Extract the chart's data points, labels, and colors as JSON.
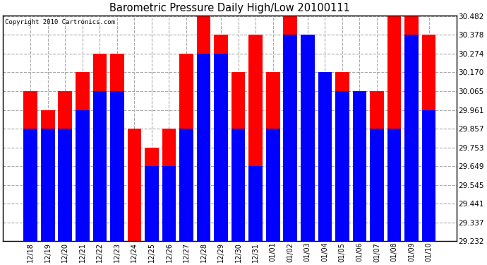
{
  "title": "Barometric Pressure Daily High/Low 20100111",
  "copyright": "Copyright 2010 Cartronics.com",
  "categories": [
    "12/18",
    "12/19",
    "12/20",
    "12/21",
    "12/22",
    "12/23",
    "12/24",
    "12/25",
    "12/26",
    "12/27",
    "12/28",
    "12/29",
    "12/30",
    "12/31",
    "01/01",
    "01/02",
    "01/03",
    "01/04",
    "01/05",
    "01/06",
    "01/07",
    "01/08",
    "01/09",
    "01/10"
  ],
  "highs": [
    30.065,
    29.961,
    30.065,
    30.17,
    30.274,
    30.274,
    29.857,
    29.753,
    29.857,
    30.274,
    30.482,
    30.378,
    30.17,
    30.378,
    30.17,
    30.482,
    30.378,
    30.17,
    30.17,
    30.065,
    30.065,
    30.482,
    30.482,
    30.378
  ],
  "lows": [
    29.857,
    29.857,
    29.857,
    29.961,
    30.065,
    30.065,
    29.232,
    29.649,
    29.649,
    29.857,
    30.274,
    30.274,
    29.857,
    29.649,
    29.857,
    30.378,
    30.378,
    30.17,
    30.065,
    30.065,
    29.857,
    29.857,
    30.378,
    29.961
  ],
  "high_color": "#ff0000",
  "low_color": "#0000ff",
  "bg_color": "#ffffff",
  "grid_color": "#aaaaaa",
  "ymin": 29.232,
  "ymax": 30.482,
  "yticks": [
    29.232,
    29.337,
    29.441,
    29.545,
    29.649,
    29.753,
    29.857,
    29.961,
    30.065,
    30.17,
    30.274,
    30.378,
    30.482
  ]
}
